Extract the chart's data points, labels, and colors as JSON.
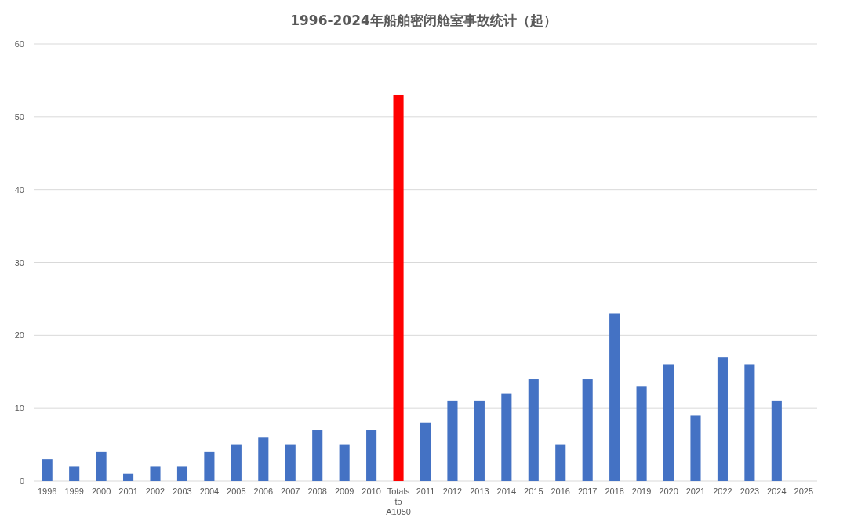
{
  "chart_data": {
    "type": "bar",
    "title": "1996-2024年船舶密闭舱室事故统计（起）",
    "categories": [
      "1996",
      "1999",
      "2000",
      "2001",
      "2002",
      "2003",
      "2004",
      "2005",
      "2006",
      "2007",
      "2008",
      "2009",
      "2010",
      "Totals to A1050",
      "2011",
      "2012",
      "2013",
      "2014",
      "2015",
      "2016",
      "2017",
      "2018",
      "2019",
      "2020",
      "2021",
      "2022",
      "2023",
      "2024",
      "2025"
    ],
    "values": [
      3,
      2,
      4,
      1,
      2,
      2,
      4,
      5,
      6,
      5,
      7,
      5,
      7,
      53,
      8,
      11,
      11,
      12,
      14,
      5,
      14,
      23,
      13,
      16,
      9,
      17,
      16,
      11,
      null
    ],
    "colors": [
      "#4472c4",
      "#4472c4",
      "#4472c4",
      "#4472c4",
      "#4472c4",
      "#4472c4",
      "#4472c4",
      "#4472c4",
      "#4472c4",
      "#4472c4",
      "#4472c4",
      "#4472c4",
      "#4472c4",
      "#ff0000",
      "#4472c4",
      "#4472c4",
      "#4472c4",
      "#4472c4",
      "#4472c4",
      "#4472c4",
      "#4472c4",
      "#4472c4",
      "#4472c4",
      "#4472c4",
      "#4472c4",
      "#4472c4",
      "#4472c4",
      "#4472c4",
      "#4472c4"
    ],
    "ylim": [
      0,
      60
    ],
    "yticks": [
      0,
      10,
      20,
      30,
      40,
      50,
      60
    ],
    "grid": "y"
  }
}
